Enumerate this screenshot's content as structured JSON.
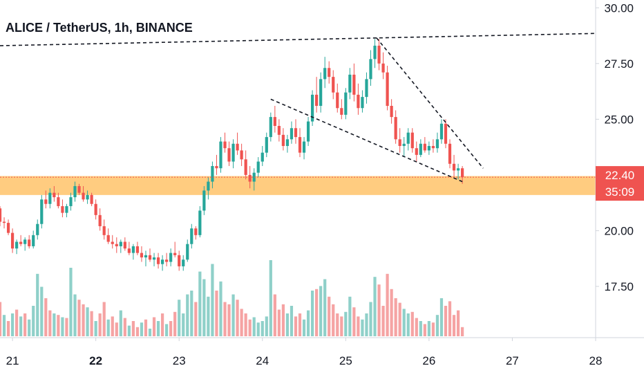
{
  "chart_data": {
    "type": "candlestick",
    "title": "ALICE / TetherUS, 1h, BINANCE",
    "y_axis": {
      "ticks": [
        "30.00",
        "27.50",
        "25.00",
        "20.00",
        "17.50"
      ],
      "tick_values": [
        30,
        27.5,
        25,
        20,
        17.5
      ],
      "range": [
        15.2,
        30.35
      ]
    },
    "x_axis": {
      "ticks": [
        "21",
        "22",
        "23",
        "24",
        "25",
        "26",
        "27",
        "28"
      ],
      "tick_values": [
        21,
        22,
        23,
        24,
        25,
        26,
        27,
        28
      ],
      "bold_tick": "22",
      "range": [
        20.85,
        28.0
      ]
    },
    "current_price": {
      "label": "22.40",
      "value": 22.4,
      "countdown": "35:09"
    },
    "colors": {
      "up": "#26a69a",
      "down": "#ef5350",
      "up_volume": "#8fd0c9",
      "down_volume": "#f5a3a3",
      "support_zone": "#ffcc80",
      "price_tag": "#ef5350",
      "trendline": "#131722"
    },
    "support_zone": {
      "low": 21.6,
      "high": 22.45
    },
    "trendlines": [
      {
        "name": "resistance",
        "points": [
          [
            20.85,
            28.3
          ],
          [
            28.0,
            28.85
          ]
        ]
      },
      {
        "name": "wedge-upper",
        "points": [
          [
            25.37,
            28.65
          ],
          [
            26.65,
            22.8
          ]
        ]
      },
      {
        "name": "wedge-lower",
        "points": [
          [
            24.1,
            25.9
          ],
          [
            26.4,
            22.2
          ]
        ]
      }
    ],
    "candles": [
      [
        20.85,
        21.0,
        21.1,
        20.2,
        20.4
      ],
      [
        20.9,
        20.4,
        20.6,
        20.1,
        20.35
      ],
      [
        20.95,
        20.35,
        20.5,
        19.8,
        19.9
      ],
      [
        21.0,
        19.9,
        20.1,
        19.0,
        19.2
      ],
      [
        21.05,
        19.2,
        19.6,
        18.95,
        19.5
      ],
      [
        21.1,
        19.5,
        19.8,
        19.3,
        19.4
      ],
      [
        21.15,
        19.4,
        19.7,
        19.1,
        19.6
      ],
      [
        21.2,
        19.6,
        19.8,
        19.2,
        19.3
      ],
      [
        21.25,
        19.3,
        20.0,
        19.2,
        19.8
      ],
      [
        21.3,
        19.8,
        20.5,
        19.6,
        20.3
      ],
      [
        21.35,
        20.3,
        21.6,
        20.1,
        21.4
      ],
      [
        21.4,
        21.4,
        21.8,
        21.0,
        21.2
      ],
      [
        21.45,
        21.2,
        21.9,
        21.0,
        21.7
      ],
      [
        21.5,
        21.7,
        22.0,
        21.3,
        21.5
      ],
      [
        21.55,
        21.5,
        21.7,
        21.0,
        21.1
      ],
      [
        21.6,
        21.1,
        21.4,
        20.6,
        20.8
      ],
      [
        21.65,
        20.8,
        21.2,
        20.6,
        21.1
      ],
      [
        21.7,
        21.1,
        21.7,
        20.9,
        21.5
      ],
      [
        21.75,
        21.5,
        22.2,
        21.3,
        22.0
      ],
      [
        21.8,
        22.0,
        22.1,
        21.6,
        21.7
      ],
      [
        21.85,
        21.7,
        22.0,
        21.3,
        21.4
      ],
      [
        21.9,
        21.4,
        21.8,
        21.2,
        21.6
      ],
      [
        21.95,
        21.6,
        21.7,
        21.1,
        21.2
      ],
      [
        22.0,
        21.2,
        21.4,
        20.5,
        20.7
      ],
      [
        22.05,
        20.7,
        21.0,
        20.0,
        20.2
      ],
      [
        22.1,
        20.2,
        20.5,
        19.6,
        19.8
      ],
      [
        22.15,
        19.8,
        20.1,
        19.4,
        19.5
      ],
      [
        22.2,
        19.5,
        19.8,
        19.2,
        19.4
      ],
      [
        22.25,
        19.4,
        19.7,
        19.0,
        19.3
      ],
      [
        22.3,
        19.3,
        19.6,
        19.0,
        19.5
      ],
      [
        22.35,
        19.5,
        19.7,
        19.1,
        19.2
      ],
      [
        22.4,
        19.2,
        19.5,
        18.9,
        19.0
      ],
      [
        22.45,
        19.0,
        19.4,
        18.7,
        19.3
      ],
      [
        22.5,
        19.3,
        19.5,
        18.9,
        19.0
      ],
      [
        22.55,
        19.0,
        19.3,
        18.6,
        18.8
      ],
      [
        22.6,
        18.8,
        19.1,
        18.4,
        18.9
      ],
      [
        22.65,
        18.9,
        19.2,
        18.6,
        18.7
      ],
      [
        22.7,
        18.7,
        19.0,
        18.4,
        18.8
      ],
      [
        22.75,
        18.8,
        19.0,
        18.3,
        18.5
      ],
      [
        22.8,
        18.5,
        18.9,
        18.2,
        18.7
      ],
      [
        22.85,
        18.7,
        19.0,
        18.4,
        18.6
      ],
      [
        22.9,
        18.6,
        19.2,
        18.4,
        19.0
      ],
      [
        22.95,
        19.0,
        19.5,
        18.8,
        18.9
      ],
      [
        23.0,
        18.9,
        19.1,
        18.2,
        18.4
      ],
      [
        23.05,
        18.4,
        18.9,
        18.2,
        18.7
      ],
      [
        23.1,
        18.7,
        19.6,
        18.6,
        19.4
      ],
      [
        23.15,
        19.4,
        20.3,
        19.2,
        20.1
      ],
      [
        23.2,
        20.1,
        20.2,
        19.6,
        19.8
      ],
      [
        23.25,
        19.8,
        21.1,
        19.7,
        20.9
      ],
      [
        23.3,
        20.9,
        22.0,
        20.7,
        21.8
      ],
      [
        23.35,
        21.8,
        22.4,
        21.4,
        22.2
      ],
      [
        23.4,
        22.2,
        23.1,
        21.9,
        22.9
      ],
      [
        23.45,
        22.9,
        23.4,
        22.5,
        22.8
      ],
      [
        23.5,
        22.8,
        24.2,
        22.6,
        24.0
      ],
      [
        23.55,
        24.0,
        24.4,
        23.5,
        23.7
      ],
      [
        23.6,
        23.7,
        24.0,
        22.9,
        23.1
      ],
      [
        23.65,
        23.1,
        24.1,
        22.8,
        23.9
      ],
      [
        23.7,
        23.9,
        24.4,
        23.4,
        23.6
      ],
      [
        23.75,
        23.6,
        23.9,
        22.9,
        23.2
      ],
      [
        23.8,
        23.2,
        23.6,
        22.3,
        22.5
      ],
      [
        23.85,
        22.5,
        22.9,
        21.9,
        22.2
      ],
      [
        23.9,
        22.2,
        22.8,
        21.8,
        22.6
      ],
      [
        23.95,
        22.6,
        23.3,
        22.4,
        23.1
      ],
      [
        24.0,
        23.1,
        23.8,
        22.9,
        23.5
      ],
      [
        24.05,
        23.5,
        24.4,
        23.3,
        24.2
      ],
      [
        24.1,
        24.2,
        25.3,
        24.0,
        25.1
      ],
      [
        24.15,
        25.1,
        25.6,
        24.4,
        24.7
      ],
      [
        24.2,
        24.7,
        25.0,
        24.0,
        24.3
      ],
      [
        24.25,
        24.3,
        24.6,
        23.6,
        23.8
      ],
      [
        24.3,
        23.8,
        24.3,
        23.5,
        24.1
      ],
      [
        24.35,
        24.1,
        24.9,
        23.9,
        24.6
      ],
      [
        24.4,
        24.6,
        25.0,
        23.9,
        24.2
      ],
      [
        24.45,
        24.2,
        24.6,
        23.3,
        23.5
      ],
      [
        24.5,
        23.5,
        24.2,
        23.2,
        24.0
      ],
      [
        24.55,
        24.0,
        25.1,
        23.8,
        24.9
      ],
      [
        24.6,
        24.9,
        26.3,
        24.7,
        26.1
      ],
      [
        24.65,
        26.1,
        26.9,
        25.3,
        25.6
      ],
      [
        24.7,
        25.6,
        27.1,
        25.3,
        26.8
      ],
      [
        24.75,
        26.8,
        27.8,
        26.4,
        27.3
      ],
      [
        24.8,
        27.3,
        27.6,
        26.6,
        26.9
      ],
      [
        24.85,
        26.9,
        27.2,
        25.9,
        26.2
      ],
      [
        24.9,
        26.2,
        26.6,
        25.3,
        25.5
      ],
      [
        24.95,
        25.5,
        25.9,
        25.0,
        25.2
      ],
      [
        25.0,
        25.2,
        26.4,
        25.0,
        26.2
      ],
      [
        25.05,
        26.2,
        27.3,
        25.9,
        27.0
      ],
      [
        25.1,
        27.0,
        27.5,
        25.8,
        26.1
      ],
      [
        25.15,
        26.1,
        26.6,
        25.2,
        25.5
      ],
      [
        25.2,
        25.5,
        26.3,
        25.3,
        26.0
      ],
      [
        25.25,
        26.0,
        27.1,
        25.7,
        26.8
      ],
      [
        25.3,
        26.8,
        28.1,
        26.5,
        27.7
      ],
      [
        25.35,
        27.7,
        28.6,
        27.3,
        28.3
      ],
      [
        25.4,
        28.3,
        28.6,
        27.2,
        27.5
      ],
      [
        25.45,
        27.5,
        28.0,
        26.8,
        27.1
      ],
      [
        25.5,
        27.1,
        27.4,
        25.4,
        25.6
      ],
      [
        25.55,
        25.6,
        25.9,
        24.8,
        25.1
      ],
      [
        25.6,
        25.1,
        25.4,
        23.9,
        24.1
      ],
      [
        25.65,
        24.1,
        24.6,
        23.5,
        23.8
      ],
      [
        25.7,
        23.8,
        24.2,
        23.3,
        23.9
      ],
      [
        25.75,
        23.9,
        24.6,
        23.6,
        24.4
      ],
      [
        25.8,
        24.4,
        24.6,
        23.5,
        23.7
      ],
      [
        25.85,
        23.7,
        24.0,
        23.1,
        23.4
      ],
      [
        25.9,
        23.4,
        24.1,
        23.3,
        23.9
      ],
      [
        25.95,
        23.9,
        24.2,
        23.5,
        23.6
      ],
      [
        26.0,
        23.6,
        24.0,
        23.4,
        23.8
      ],
      [
        26.05,
        23.8,
        24.1,
        23.5,
        23.7
      ],
      [
        26.1,
        23.7,
        24.4,
        23.5,
        24.1
      ],
      [
        26.15,
        24.1,
        25.0,
        23.9,
        24.8
      ],
      [
        26.2,
        24.8,
        25.0,
        23.7,
        23.9
      ],
      [
        26.25,
        23.9,
        24.1,
        22.8,
        23.0
      ],
      [
        26.3,
        23.0,
        23.4,
        22.4,
        22.7
      ],
      [
        26.35,
        22.7,
        23.0,
        22.3,
        22.8
      ],
      [
        26.4,
        22.8,
        22.9,
        22.1,
        22.4
      ]
    ],
    "volumes": [
      [
        20.85,
        0.45,
        1
      ],
      [
        20.9,
        0.28,
        0
      ],
      [
        20.95,
        0.2,
        1
      ],
      [
        21.0,
        0.3,
        0
      ],
      [
        21.05,
        0.35,
        1
      ],
      [
        21.1,
        0.26,
        0
      ],
      [
        21.15,
        0.3,
        1
      ],
      [
        21.2,
        0.22,
        0
      ],
      [
        21.25,
        0.4,
        0
      ],
      [
        21.3,
        0.82,
        0
      ],
      [
        21.35,
        0.65,
        0
      ],
      [
        21.4,
        0.5,
        1
      ],
      [
        21.45,
        0.34,
        1
      ],
      [
        21.5,
        0.3,
        0
      ],
      [
        21.55,
        0.28,
        1
      ],
      [
        21.6,
        0.25,
        0
      ],
      [
        21.65,
        0.24,
        1
      ],
      [
        21.7,
        0.9,
        0
      ],
      [
        21.75,
        0.55,
        0
      ],
      [
        21.8,
        0.48,
        1
      ],
      [
        21.85,
        0.42,
        1
      ],
      [
        21.9,
        0.38,
        0
      ],
      [
        21.95,
        0.33,
        1
      ],
      [
        22.0,
        0.2,
        0
      ],
      [
        22.05,
        0.3,
        1
      ],
      [
        22.1,
        0.45,
        1
      ],
      [
        22.15,
        0.22,
        0
      ],
      [
        22.2,
        0.26,
        1
      ],
      [
        22.25,
        0.18,
        1
      ],
      [
        22.3,
        0.34,
        0
      ],
      [
        22.35,
        0.24,
        1
      ],
      [
        22.4,
        0.14,
        0
      ],
      [
        22.45,
        0.2,
        1
      ],
      [
        22.5,
        0.12,
        1
      ],
      [
        22.55,
        0.18,
        0
      ],
      [
        22.6,
        0.22,
        1
      ],
      [
        22.65,
        0.1,
        0
      ],
      [
        22.7,
        0.25,
        1
      ],
      [
        22.75,
        0.2,
        0
      ],
      [
        22.8,
        0.3,
        1
      ],
      [
        22.85,
        0.16,
        0
      ],
      [
        22.9,
        0.2,
        1
      ],
      [
        22.95,
        0.32,
        1
      ],
      [
        23.0,
        0.48,
        0
      ],
      [
        23.05,
        0.3,
        0
      ],
      [
        23.1,
        0.55,
        0
      ],
      [
        23.15,
        0.6,
        0
      ],
      [
        23.2,
        0.45,
        1
      ],
      [
        23.25,
        0.85,
        0
      ],
      [
        23.3,
        0.75,
        0
      ],
      [
        23.35,
        0.52,
        0
      ],
      [
        23.4,
        0.95,
        0
      ],
      [
        23.45,
        0.6,
        1
      ],
      [
        23.5,
        0.72,
        0
      ],
      [
        23.55,
        0.45,
        1
      ],
      [
        23.6,
        0.42,
        1
      ],
      [
        23.65,
        0.55,
        0
      ],
      [
        23.7,
        0.48,
        1
      ],
      [
        23.75,
        0.36,
        1
      ],
      [
        23.8,
        0.3,
        1
      ],
      [
        23.85,
        0.22,
        1
      ],
      [
        23.9,
        0.25,
        0
      ],
      [
        23.95,
        0.18,
        0
      ],
      [
        24.0,
        0.2,
        0
      ],
      [
        24.05,
        0.26,
        0
      ],
      [
        24.1,
        1.0,
        0
      ],
      [
        24.15,
        0.55,
        1
      ],
      [
        24.2,
        0.35,
        1
      ],
      [
        24.25,
        0.42,
        1
      ],
      [
        24.3,
        0.3,
        0
      ],
      [
        24.35,
        0.4,
        0
      ],
      [
        24.4,
        0.26,
        1
      ],
      [
        24.45,
        0.3,
        1
      ],
      [
        24.5,
        0.22,
        0
      ],
      [
        24.55,
        0.34,
        0
      ],
      [
        24.6,
        0.6,
        0
      ],
      [
        24.65,
        0.62,
        1
      ],
      [
        24.7,
        0.66,
        0
      ],
      [
        24.75,
        0.75,
        0
      ],
      [
        24.8,
        0.52,
        1
      ],
      [
        24.85,
        0.42,
        1
      ],
      [
        24.9,
        0.3,
        1
      ],
      [
        24.95,
        0.26,
        1
      ],
      [
        25.0,
        0.32,
        0
      ],
      [
        25.05,
        0.52,
        0
      ],
      [
        25.1,
        0.38,
        1
      ],
      [
        25.15,
        0.26,
        1
      ],
      [
        25.2,
        0.22,
        0
      ],
      [
        25.25,
        0.3,
        0
      ],
      [
        25.3,
        0.45,
        0
      ],
      [
        25.35,
        0.78,
        0
      ],
      [
        25.4,
        0.68,
        1
      ],
      [
        25.45,
        0.4,
        1
      ],
      [
        25.5,
        0.82,
        1
      ],
      [
        25.55,
        0.62,
        1
      ],
      [
        25.6,
        0.5,
        1
      ],
      [
        25.65,
        0.44,
        1
      ],
      [
        25.7,
        0.36,
        0
      ],
      [
        25.75,
        0.3,
        0
      ],
      [
        25.8,
        0.32,
        1
      ],
      [
        25.85,
        0.24,
        1
      ],
      [
        25.9,
        0.2,
        0
      ],
      [
        25.95,
        0.16,
        1
      ],
      [
        26.0,
        0.2,
        0
      ],
      [
        26.05,
        0.18,
        1
      ],
      [
        26.1,
        0.28,
        0
      ],
      [
        26.15,
        0.5,
        0
      ],
      [
        26.2,
        0.4,
        1
      ],
      [
        26.25,
        0.46,
        1
      ],
      [
        26.3,
        0.28,
        1
      ],
      [
        26.35,
        0.34,
        1
      ],
      [
        26.4,
        0.12,
        1
      ]
    ]
  }
}
